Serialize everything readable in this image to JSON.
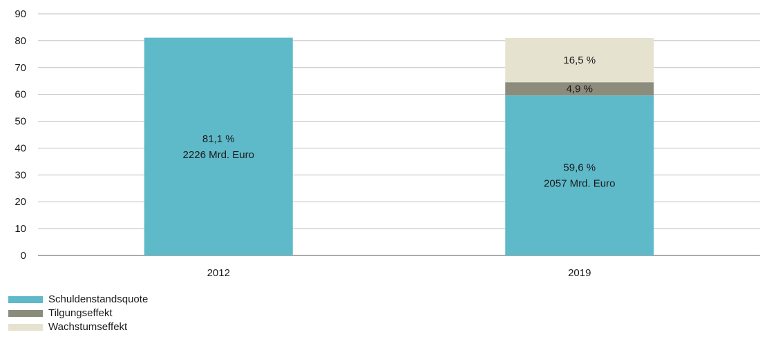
{
  "chart_data": {
    "type": "bar",
    "stacked": true,
    "categories": [
      "2012",
      "2019"
    ],
    "series": [
      {
        "name": "Schuldenstandsquote",
        "color": "#5eb9c9",
        "values": [
          81.1,
          59.6
        ]
      },
      {
        "name": "Tilgungseffekt",
        "color": "#8c8c7c",
        "values": [
          0,
          4.9
        ]
      },
      {
        "name": "Wachstumseffekt",
        "color": "#e6e2d0",
        "values": [
          0,
          16.5
        ]
      }
    ],
    "bar_labels": [
      {
        "category": "2012",
        "series": "Schuldenstandsquote",
        "lines": [
          "81,1 %",
          "2226 Mrd. Euro"
        ]
      },
      {
        "category": "2019",
        "series": "Schuldenstandsquote",
        "lines": [
          "59,6 %",
          "2057 Mrd. Euro"
        ]
      },
      {
        "category": "2019",
        "series": "Tilgungseffekt",
        "lines": [
          "4,9 %"
        ]
      },
      {
        "category": "2019",
        "series": "Wachstumseffekt",
        "lines": [
          "16,5 %"
        ]
      }
    ],
    "y_ticks": [
      "0",
      "10",
      "20",
      "30",
      "40",
      "50",
      "60",
      "70",
      "80",
      "90"
    ],
    "ylim": [
      0,
      90
    ],
    "grid": true,
    "legend_position": "bottom-left",
    "title": "",
    "xlabel": "",
    "ylabel": ""
  }
}
